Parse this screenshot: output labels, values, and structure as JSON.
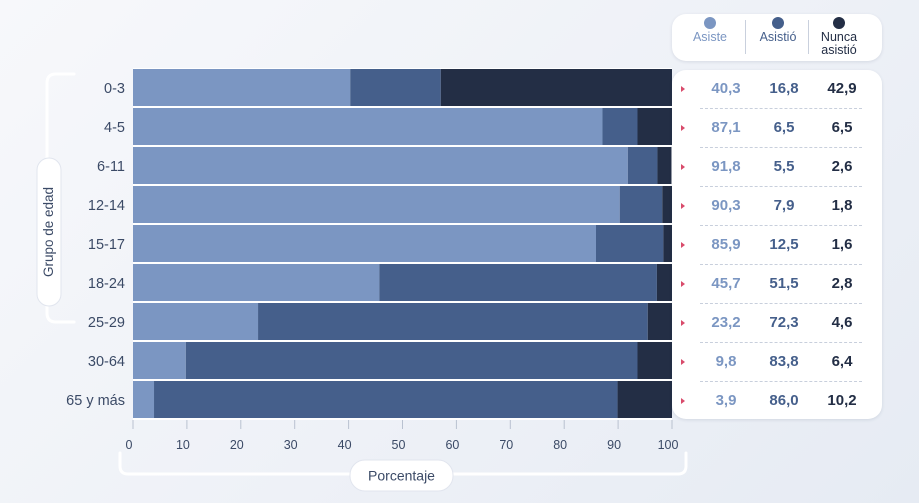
{
  "colors": {
    "asiste": "#7b96c2",
    "asistio": "#455f8b",
    "nunca": "#232e45",
    "text": "#3b4a66",
    "bracket": "#ffffff"
  },
  "chart_data": {
    "type": "bar",
    "orientation": "horizontal",
    "stacked": true,
    "categories": [
      "0-3",
      "4-5",
      "6-11",
      "12-14",
      "15-17",
      "18-24",
      "25-29",
      "30-64",
      "65 y más"
    ],
    "series": [
      {
        "name": "Asiste",
        "values": [
          40.3,
          87.1,
          91.8,
          90.3,
          85.9,
          45.7,
          23.2,
          9.8,
          3.9
        ]
      },
      {
        "name": "Asistió",
        "values": [
          16.8,
          6.5,
          5.5,
          7.9,
          12.5,
          51.5,
          72.3,
          83.8,
          86.0
        ]
      },
      {
        "name": "Nunca asistió",
        "values": [
          42.9,
          6.5,
          2.6,
          1.8,
          1.6,
          2.8,
          4.6,
          6.4,
          10.2
        ]
      }
    ],
    "value_labels": [
      [
        "40,3",
        "16,8",
        "42,9"
      ],
      [
        "87,1",
        "6,5",
        "6,5"
      ],
      [
        "91,8",
        "5,5",
        "2,6"
      ],
      [
        "90,3",
        "7,9",
        "1,8"
      ],
      [
        "85,9",
        "12,5",
        "1,6"
      ],
      [
        "45,7",
        "51,5",
        "2,8"
      ],
      [
        "23,2",
        "72,3",
        "4,6"
      ],
      [
        "9,8",
        "83,8",
        "6,4"
      ],
      [
        "3,9",
        "86,0",
        "10,2"
      ]
    ],
    "xlabel": "Porcentaje",
    "ylabel": "Grupo de edad",
    "xlim": [
      0,
      100
    ],
    "xticks": [
      0,
      10,
      20,
      30,
      40,
      50,
      60,
      70,
      80,
      90,
      100
    ],
    "legend_labels": [
      "Asiste",
      "Asistió",
      "Nunca\nasistió"
    ],
    "legend_position": "top-right",
    "grid": false
  }
}
